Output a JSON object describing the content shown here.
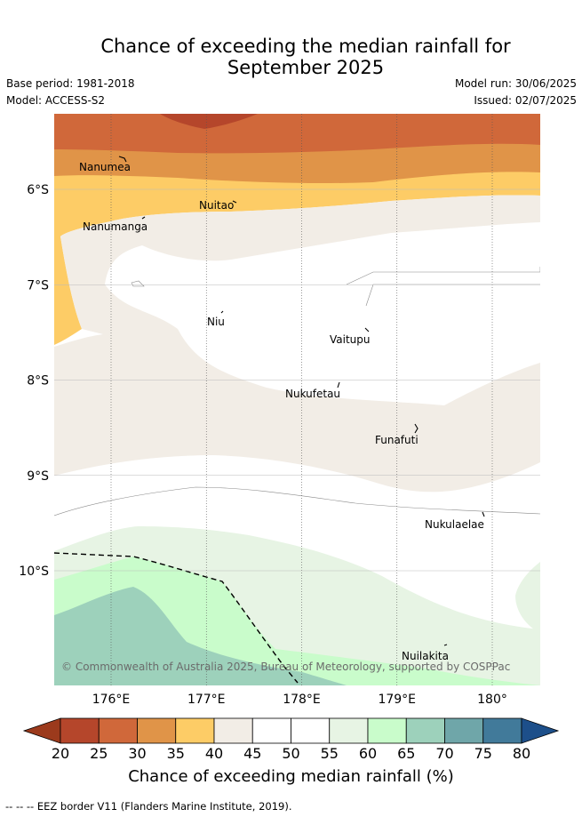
{
  "header": {
    "title_line1": "Chance of exceeding the median rainfall for",
    "title_line2": "September 2025",
    "base_period": "Base period: 1981-2018",
    "model": "Model: ACCESS-S2",
    "model_run": "Model run: 30/06/2025",
    "issued": "Issued: 02/07/2025"
  },
  "chart_data": {
    "type": "map",
    "x_ticks": [
      "176°E",
      "177°E",
      "178°E",
      "179°E",
      "180°"
    ],
    "y_ticks": [
      "6°S",
      "7°S",
      "8°S",
      "9°S",
      "10°S"
    ],
    "places": [
      {
        "name": "Nanumea"
      },
      {
        "name": "Nuitao"
      },
      {
        "name": "Nanumanga"
      },
      {
        "name": "Niu"
      },
      {
        "name": "Vaitupu"
      },
      {
        "name": "Nukufetau"
      },
      {
        "name": "Funafuti"
      },
      {
        "name": "Nukulaelae"
      },
      {
        "name": "Nuilakita"
      }
    ],
    "legend": {
      "levels": [
        "20",
        "25",
        "30",
        "35",
        "40",
        "45",
        "50",
        "55",
        "60",
        "65",
        "70",
        "75",
        "80"
      ],
      "colors": [
        "#9c3a1c",
        "#b5462b",
        "#d0683a",
        "#e09448",
        "#fdcc66",
        "#f2ede6",
        "#ffffff",
        "#ffffff",
        "#e7f4e4",
        "#c9fccb",
        "#9dd1bb",
        "#6fa6a9",
        "#417a9a",
        "#1d4f8a"
      ],
      "label": "Chance of exceeding median rainfall (%)"
    },
    "copyright": "© Commonwealth of Australia 2025, Bureau of Meteorology, supported by COSPPac"
  },
  "footnote": "--  --  -- EEZ border V11 (Flanders Marine Institute, 2019)."
}
